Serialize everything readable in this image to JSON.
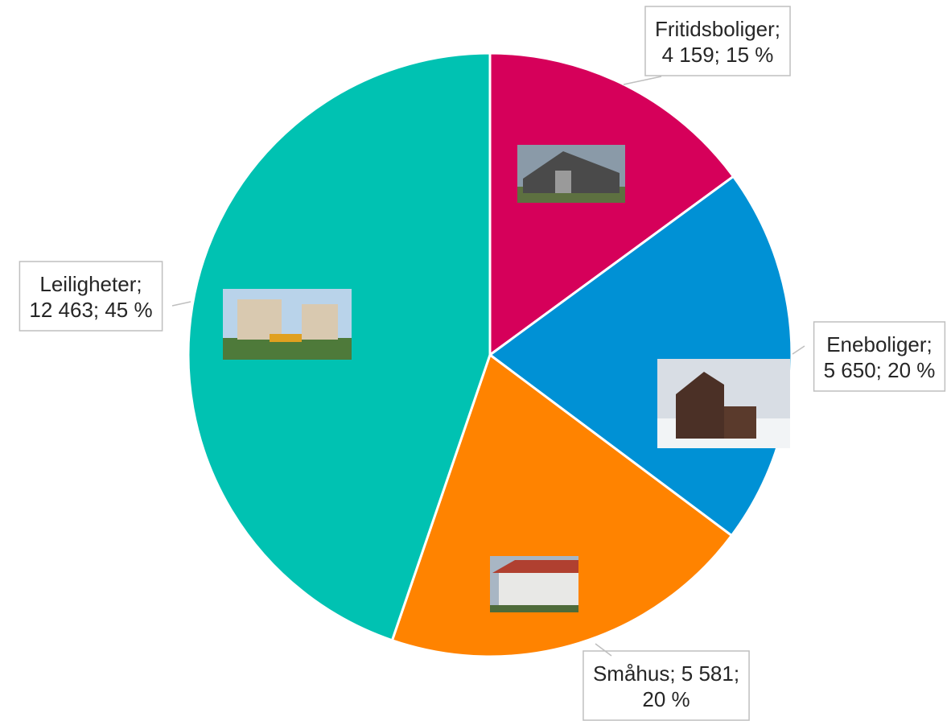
{
  "chart_data": {
    "type": "pie",
    "values": [
      4159,
      5650,
      5581,
      12463
    ],
    "value_labels": [
      [
        "Fritidsboliger;",
        "4 159; 15 %"
      ],
      [
        "Eneboliger;",
        "5 650; 20 %"
      ],
      [
        "Småhus; 5 581;",
        "20 %"
      ],
      [
        "Leiligheter;",
        "12 463; 45 %"
      ]
    ],
    "colors": [
      "#d6005a",
      "#0091d5",
      "#ff8300",
      "#00c2b2"
    ]
  }
}
